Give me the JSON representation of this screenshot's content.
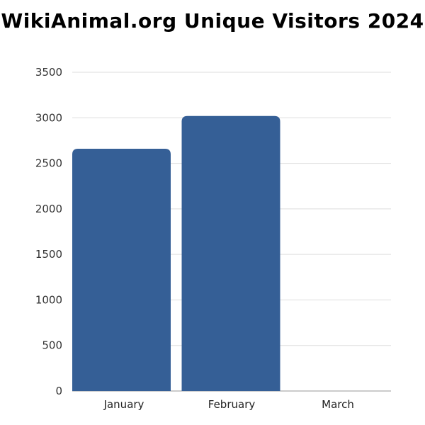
{
  "chart_data": {
    "type": "bar",
    "title": "WikiAnimal.org Unique Visitors 2024",
    "categories": [
      "January",
      "February",
      "March"
    ],
    "values": [
      2660,
      3020,
      0
    ],
    "xlabel": "",
    "ylabel": "",
    "ylim": [
      0,
      3500
    ],
    "yticks": [
      0,
      500,
      1000,
      1500,
      2000,
      2500,
      3000,
      3500
    ],
    "grid": true,
    "bar_color": "#355f96"
  }
}
